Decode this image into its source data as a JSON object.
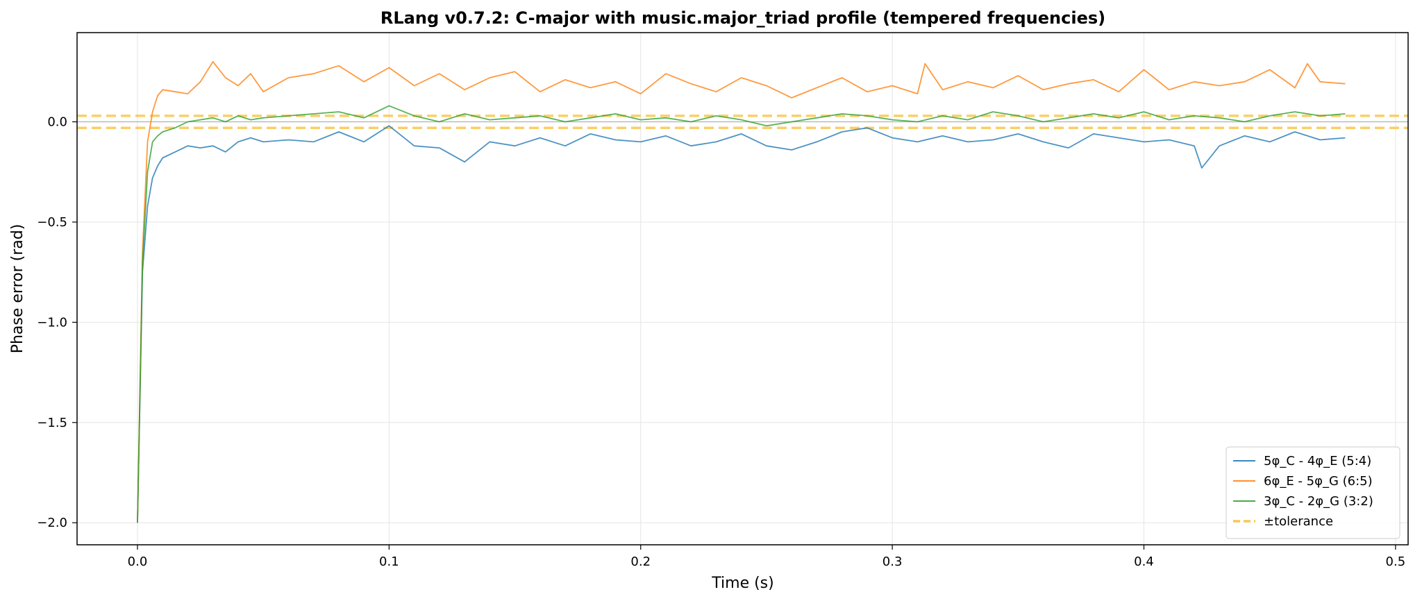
{
  "chart_data": {
    "type": "line",
    "title": "RLang v0.7.2: C-major with music.major_triad profile (tempered frequencies)",
    "xlabel": "Time (s)",
    "ylabel": "Phase error (rad)",
    "xlim": [
      -0.024,
      0.505
    ],
    "ylim": [
      -2.11,
      0.445
    ],
    "xticks": [
      0.0,
      0.1,
      0.2,
      0.3,
      0.4,
      0.5
    ],
    "xtick_labels": [
      "0.0",
      "0.1",
      "0.2",
      "0.3",
      "0.4",
      "0.5"
    ],
    "yticks": [
      0.0,
      -0.5,
      -1.0,
      -1.5,
      -2.0
    ],
    "ytick_labels": [
      "0.0",
      "−0.5",
      "−1.0",
      "−1.5",
      "−2.0"
    ],
    "grid": true,
    "legend_position": "lower-right",
    "tolerance": 0.03,
    "series": [
      {
        "name": "5φ_C - 4φ_E (5:4)",
        "color": "#1f77b4",
        "x": [
          0.0,
          0.002,
          0.004,
          0.006,
          0.008,
          0.01,
          0.015,
          0.02,
          0.025,
          0.03,
          0.035,
          0.04,
          0.045,
          0.05,
          0.06,
          0.07,
          0.08,
          0.09,
          0.1,
          0.11,
          0.12,
          0.13,
          0.14,
          0.15,
          0.16,
          0.17,
          0.18,
          0.19,
          0.2,
          0.21,
          0.22,
          0.23,
          0.24,
          0.25,
          0.26,
          0.27,
          0.28,
          0.29,
          0.3,
          0.31,
          0.32,
          0.33,
          0.34,
          0.35,
          0.36,
          0.37,
          0.38,
          0.39,
          0.4,
          0.41,
          0.42,
          0.423,
          0.43,
          0.44,
          0.45,
          0.46,
          0.47,
          0.48
        ],
        "y": [
          -2.0,
          -0.75,
          -0.42,
          -0.28,
          -0.22,
          -0.18,
          -0.15,
          -0.12,
          -0.13,
          -0.12,
          -0.15,
          -0.1,
          -0.08,
          -0.1,
          -0.09,
          -0.1,
          -0.05,
          -0.1,
          -0.02,
          -0.12,
          -0.13,
          -0.2,
          -0.1,
          -0.12,
          -0.08,
          -0.12,
          -0.06,
          -0.09,
          -0.1,
          -0.07,
          -0.12,
          -0.1,
          -0.06,
          -0.12,
          -0.14,
          -0.1,
          -0.05,
          -0.03,
          -0.08,
          -0.1,
          -0.07,
          -0.1,
          -0.09,
          -0.06,
          -0.1,
          -0.13,
          -0.06,
          -0.08,
          -0.1,
          -0.09,
          -0.12,
          -0.23,
          -0.12,
          -0.07,
          -0.1,
          -0.05,
          -0.09,
          -0.08
        ]
      },
      {
        "name": "6φ_E - 5φ_G (6:5)",
        "color": "#ff7f0e",
        "x": [
          0.0,
          0.002,
          0.004,
          0.006,
          0.008,
          0.01,
          0.015,
          0.02,
          0.025,
          0.03,
          0.035,
          0.04,
          0.045,
          0.05,
          0.06,
          0.07,
          0.08,
          0.09,
          0.1,
          0.11,
          0.12,
          0.13,
          0.14,
          0.15,
          0.16,
          0.17,
          0.18,
          0.19,
          0.2,
          0.21,
          0.22,
          0.23,
          0.24,
          0.25,
          0.26,
          0.27,
          0.28,
          0.29,
          0.3,
          0.31,
          0.313,
          0.32,
          0.33,
          0.34,
          0.35,
          0.36,
          0.37,
          0.38,
          0.39,
          0.4,
          0.41,
          0.42,
          0.43,
          0.44,
          0.45,
          0.46,
          0.465,
          0.47,
          0.48
        ],
        "y": [
          -2.0,
          -0.65,
          -0.1,
          0.05,
          0.13,
          0.16,
          0.15,
          0.14,
          0.2,
          0.3,
          0.22,
          0.18,
          0.24,
          0.15,
          0.22,
          0.24,
          0.28,
          0.2,
          0.27,
          0.18,
          0.24,
          0.16,
          0.22,
          0.25,
          0.15,
          0.21,
          0.17,
          0.2,
          0.14,
          0.24,
          0.19,
          0.15,
          0.22,
          0.18,
          0.12,
          0.17,
          0.22,
          0.15,
          0.18,
          0.14,
          0.29,
          0.16,
          0.2,
          0.17,
          0.23,
          0.16,
          0.19,
          0.21,
          0.15,
          0.26,
          0.16,
          0.2,
          0.18,
          0.2,
          0.26,
          0.17,
          0.29,
          0.2,
          0.19
        ]
      },
      {
        "name": "3φ_C - 2φ_G (3:2)",
        "color": "#2ca02c",
        "x": [
          0.0,
          0.002,
          0.004,
          0.006,
          0.008,
          0.01,
          0.015,
          0.02,
          0.025,
          0.03,
          0.035,
          0.04,
          0.045,
          0.05,
          0.06,
          0.07,
          0.08,
          0.09,
          0.1,
          0.11,
          0.12,
          0.13,
          0.14,
          0.15,
          0.16,
          0.17,
          0.18,
          0.19,
          0.2,
          0.21,
          0.22,
          0.23,
          0.24,
          0.25,
          0.26,
          0.27,
          0.28,
          0.29,
          0.3,
          0.31,
          0.32,
          0.33,
          0.34,
          0.35,
          0.36,
          0.37,
          0.38,
          0.39,
          0.4,
          0.41,
          0.42,
          0.43,
          0.44,
          0.45,
          0.46,
          0.47,
          0.48
        ],
        "y": [
          -2.0,
          -0.7,
          -0.25,
          -0.1,
          -0.07,
          -0.05,
          -0.03,
          0.0,
          0.01,
          0.02,
          0.0,
          0.03,
          0.01,
          0.02,
          0.03,
          0.04,
          0.05,
          0.02,
          0.08,
          0.03,
          0.0,
          0.04,
          0.01,
          0.02,
          0.03,
          0.0,
          0.02,
          0.04,
          0.01,
          0.02,
          0.0,
          0.03,
          0.01,
          -0.02,
          0.0,
          0.02,
          0.04,
          0.03,
          0.01,
          0.0,
          0.03,
          0.01,
          0.05,
          0.03,
          0.0,
          0.02,
          0.04,
          0.02,
          0.05,
          0.01,
          0.03,
          0.02,
          0.0,
          0.03,
          0.05,
          0.03,
          0.04
        ]
      }
    ],
    "legend_entries": [
      {
        "label": "5φ_C - 4φ_E (5:4)",
        "color": "#1f77b4",
        "style": "solid"
      },
      {
        "label": "6φ_E - 5φ_G (6:5)",
        "color": "#ff7f0e",
        "style": "solid"
      },
      {
        "label": "3φ_C - 2φ_G (3:2)",
        "color": "#2ca02c",
        "style": "solid"
      },
      {
        "label": "±tolerance",
        "color": "#f9c74f",
        "style": "dashed"
      }
    ]
  }
}
